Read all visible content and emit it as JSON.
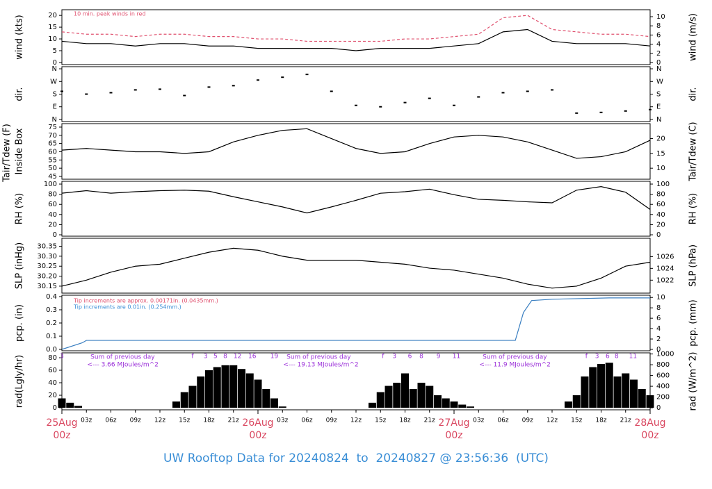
{
  "title": "UW Rooftop Data for 20240824  to  20240827 @ 23:56:36  (UTC)",
  "chart_data": [
    {
      "type": "line",
      "ylabel": "wind (kts)",
      "y2label": "wind (m/s)",
      "annotation": "10 min. peak winds in red",
      "ylim": [
        -0.9,
        22.4
      ],
      "yticks": [
        0,
        5,
        10,
        15,
        20
      ],
      "y2lim": [
        -0.46,
        11.52
      ],
      "y2ticks": [
        0,
        2,
        4,
        6,
        8,
        10
      ],
      "x": [
        0,
        3,
        6,
        9,
        12,
        15,
        18,
        21,
        24,
        27,
        30,
        33,
        36,
        39,
        42,
        45,
        48,
        51,
        54,
        57,
        60,
        63,
        66,
        69,
        72
      ],
      "series": [
        {
          "color": "#000000",
          "values": [
            9,
            8,
            8,
            7,
            8,
            8,
            7,
            7,
            6,
            6,
            6,
            6,
            5,
            6,
            6,
            6,
            7,
            8,
            13,
            14,
            9,
            8,
            8,
            8,
            7
          ]
        },
        {
          "color": "#e0506e",
          "style": "dash",
          "values": [
            13,
            12,
            12,
            11,
            12,
            12,
            11,
            11,
            10,
            10,
            9,
            9,
            9,
            9,
            10,
            10,
            11,
            12,
            19,
            20,
            14,
            13,
            12,
            12,
            11
          ]
        }
      ]
    },
    {
      "type": "scatter",
      "ylabel": "dir.",
      "y2label": "dir.",
      "ylim": [
        -15,
        375
      ],
      "yticks": [
        {
          "value": 0,
          "label": "N"
        },
        {
          "value": 90,
          "label": "E"
        },
        {
          "value": 180,
          "label": "S"
        },
        {
          "value": 270,
          "label": "W"
        },
        {
          "value": 360,
          "label": "N"
        }
      ],
      "y2lim": [
        -15,
        375
      ],
      "y2ticks": [
        {
          "value": 0,
          "label": "N"
        },
        {
          "value": 90,
          "label": "E"
        },
        {
          "value": 180,
          "label": "S"
        },
        {
          "value": 270,
          "label": "W"
        },
        {
          "value": 360,
          "label": "N"
        }
      ],
      "x": [
        0,
        3,
        6,
        9,
        12,
        15,
        18,
        21,
        24,
        27,
        30,
        33,
        36,
        39,
        42,
        45,
        48,
        51,
        54,
        57,
        60,
        63,
        66,
        69,
        72
      ],
      "series": [
        {
          "color": "#000000",
          "values": [
            200,
            180,
            190,
            210,
            215,
            170,
            230,
            240,
            280,
            300,
            320,
            200,
            100,
            90,
            120,
            150,
            100,
            160,
            190,
            200,
            210,
            45,
            50,
            60,
            70
          ]
        }
      ]
    },
    {
      "type": "line",
      "ylabel": "Tair/Tdew (F)",
      "ylabel2": "Inside Box",
      "y2label": "Tair/Tdew (C)",
      "ylim": [
        43.3,
        77.1
      ],
      "yticks": [
        45,
        50,
        55,
        60,
        65,
        70,
        75
      ],
      "y2lim": [
        6.28,
        25.06
      ],
      "y2ticks": [
        10,
        15,
        20
      ],
      "x": [
        0,
        3,
        6,
        9,
        12,
        15,
        18,
        21,
        24,
        27,
        30,
        33,
        36,
        39,
        42,
        45,
        48,
        51,
        54,
        57,
        60,
        63,
        66,
        69,
        72
      ],
      "series": [
        {
          "color": "#000000",
          "values": [
            61,
            62,
            61,
            60,
            60,
            59,
            60,
            66,
            70,
            73,
            74,
            68,
            62,
            59,
            60,
            65,
            69,
            70,
            69,
            66,
            61,
            56,
            57,
            60,
            67
          ]
        }
      ]
    },
    {
      "type": "line",
      "ylabel": "RH (%)",
      "y2label": "RH (%)",
      "ylim": [
        -2.7,
        105.5
      ],
      "yticks": [
        0,
        20,
        40,
        60,
        80,
        100
      ],
      "y2lim": [
        -2.7,
        105.5
      ],
      "y2ticks": [
        0,
        20,
        40,
        60,
        80,
        100
      ],
      "x": [
        0,
        3,
        6,
        9,
        12,
        15,
        18,
        21,
        24,
        27,
        30,
        33,
        36,
        39,
        42,
        45,
        48,
        51,
        54,
        57,
        60,
        63,
        66,
        69,
        72
      ],
      "series": [
        {
          "color": "#000000",
          "values": [
            82,
            87,
            82,
            85,
            87,
            88,
            86,
            75,
            65,
            55,
            43,
            55,
            68,
            82,
            85,
            90,
            79,
            70,
            68,
            65,
            63,
            88,
            95,
            84,
            50
          ]
        }
      ]
    },
    {
      "type": "line",
      "ylabel": "SLP (inHg)",
      "y2label": "SLP (hPa)",
      "ylim": [
        30.115,
        30.39
      ],
      "yticks": [
        30.15,
        {
          "value": 30.2,
          "label": "30.20"
        },
        30.25,
        {
          "value": 30.3,
          "label": "30.30"
        },
        30.35
      ],
      "y2lim": [
        1019.8,
        1029.1
      ],
      "y2ticks": [
        1022,
        1024,
        1026
      ],
      "x": [
        0,
        3,
        6,
        9,
        12,
        15,
        18,
        21,
        24,
        27,
        30,
        33,
        36,
        39,
        42,
        45,
        48,
        51,
        54,
        57,
        60,
        63,
        66,
        69,
        72
      ],
      "series": [
        {
          "color": "#000000",
          "values": [
            30.15,
            30.18,
            30.22,
            30.25,
            30.26,
            30.29,
            30.32,
            30.34,
            30.33,
            30.3,
            30.28,
            30.28,
            30.28,
            30.27,
            30.26,
            30.24,
            30.23,
            30.21,
            30.19,
            30.16,
            30.14,
            30.15,
            30.19,
            30.25,
            30.27
          ]
        }
      ]
    },
    {
      "type": "step",
      "ylabel": "pcp. (in)",
      "y2label": "pcp. (mm)",
      "annotations": [
        {
          "text": "Tip increments are approx. 0.00171in. (0.0435mm.)",
          "color": "#e0506e"
        },
        {
          "text": "Tip increments are 0.01in. (0.254mm.)",
          "color": "#3a8ed6"
        }
      ],
      "ylim": [
        -0.0105,
        0.4105
      ],
      "yticks": [
        {
          "value": 0,
          "label": "0.0"
        },
        0.1,
        0.2,
        0.3,
        0.4
      ],
      "y2lim": [
        -0.267,
        10.43
      ],
      "y2ticks": [
        0,
        2,
        4,
        6,
        8,
        10
      ],
      "x": [
        0,
        2.5,
        3,
        55.5,
        56.5,
        57.5,
        60,
        67,
        72
      ],
      "series": [
        {
          "color": "#3a7fc1",
          "values": [
            0,
            0.05,
            0.068,
            0.068,
            0.28,
            0.37,
            0.38,
            0.39,
            0.39
          ]
        }
      ]
    },
    {
      "type": "bar",
      "ylabel": "rad(Lgly/hr)",
      "y2label": "rad (W/m^2)",
      "ylim": [
        -3.3,
        87.8
      ],
      "yticks": [
        0,
        20,
        40,
        60,
        80
      ],
      "y2lim": [
        -38,
        1021
      ],
      "y2ticks": [
        0,
        200,
        400,
        600,
        800,
        1000
      ],
      "daily_sums": [
        [
          "Sum of previous day",
          "<--- 3.66 MJoules/m^2"
        ],
        [
          "Sum of previous day",
          "<--- 19.13 MJoules/m^2"
        ],
        [
          "Sum of previous day",
          "<--- 11.9 MJoules/m^2"
        ]
      ],
      "hour_marks": [
        {
          "value": 0,
          "label": "3"
        },
        {
          "value": 16,
          "label": "f"
        },
        {
          "value": 17.6,
          "label": "3"
        },
        {
          "value": 18.8,
          "label": "5"
        },
        {
          "value": 20,
          "label": "8"
        },
        {
          "value": 21.5,
          "label": "12"
        },
        {
          "value": 23.3,
          "label": "16"
        },
        {
          "value": 26,
          "label": "19"
        },
        {
          "value": 39.3,
          "label": "f"
        },
        {
          "value": 40.7,
          "label": "3"
        },
        {
          "value": 42.6,
          "label": "6"
        },
        {
          "value": 44,
          "label": "8"
        },
        {
          "value": 46.1,
          "label": "9"
        },
        {
          "value": 48.3,
          "label": "11"
        },
        {
          "value": 64.2,
          "label": "f"
        },
        {
          "value": 65.5,
          "label": "3"
        },
        {
          "value": 66.8,
          "label": "6"
        },
        {
          "value": 67.9,
          "label": "8"
        },
        {
          "value": 69.9,
          "label": "11"
        }
      ],
      "xlim": [
        0,
        72
      ],
      "xticks": [
        {
          "value": 3,
          "label": "03z"
        },
        {
          "value": 6,
          "label": "06z"
        },
        {
          "value": 9,
          "label": "09z"
        },
        {
          "value": 12,
          "label": "12z"
        },
        {
          "value": 15,
          "label": "15z"
        },
        {
          "value": 18,
          "label": "18z"
        },
        {
          "value": 21,
          "label": "21z"
        },
        {
          "value": 27,
          "label": "03z"
        },
        {
          "value": 30,
          "label": "06z"
        },
        {
          "value": 33,
          "label": "09z"
        },
        {
          "value": 36,
          "label": "12z"
        },
        {
          "value": 39,
          "label": "15z"
        },
        {
          "value": 42,
          "label": "18z"
        },
        {
          "value": 45,
          "label": "21z"
        },
        {
          "value": 51,
          "label": "03z"
        },
        {
          "value": 54,
          "label": "06z"
        },
        {
          "value": 57,
          "label": "09z"
        },
        {
          "value": 60,
          "label": "12z"
        },
        {
          "value": 63,
          "label": "15z"
        },
        {
          "value": 66,
          "label": "18z"
        },
        {
          "value": 69,
          "label": "21z"
        }
      ],
      "day_ticks": [
        {
          "value": 0,
          "label": "25Aug",
          "sub": "00z"
        },
        {
          "value": 24,
          "label": "26Aug",
          "sub": "00z"
        },
        {
          "value": 48,
          "label": "27Aug",
          "sub": "00z"
        },
        {
          "value": 72,
          "label": "28Aug",
          "sub": "00z"
        }
      ],
      "x": [
        0,
        1,
        2,
        3,
        4,
        5,
        6,
        7,
        8,
        9,
        10,
        11,
        12,
        13,
        14,
        15,
        16,
        17,
        18,
        19,
        20,
        21,
        22,
        23,
        24,
        25,
        26,
        27,
        28,
        29,
        30,
        31,
        32,
        33,
        34,
        35,
        36,
        37,
        38,
        39,
        40,
        41,
        42,
        43,
        44,
        45,
        46,
        47,
        48,
        49,
        50,
        51,
        52,
        53,
        54,
        55,
        56,
        57,
        58,
        59,
        60,
        61,
        62,
        63,
        64,
        65,
        66,
        67,
        68,
        69,
        70,
        71,
        72
      ],
      "series": [
        {
          "color": "#000000",
          "values": [
            15,
            8,
            3,
            0,
            0,
            0,
            0,
            0,
            0,
            0,
            0,
            0,
            0,
            0,
            10,
            25,
            35,
            50,
            60,
            65,
            68,
            68,
            62,
            55,
            45,
            30,
            15,
            2,
            0,
            0,
            0,
            0,
            0,
            0,
            0,
            0,
            0,
            0,
            8,
            25,
            35,
            40,
            55,
            30,
            40,
            35,
            20,
            15,
            10,
            5,
            2,
            0,
            0,
            0,
            0,
            0,
            0,
            0,
            0,
            0,
            0,
            0,
            10,
            20,
            50,
            65,
            70,
            72,
            50,
            55,
            45,
            30,
            20
          ]
        }
      ]
    }
  ]
}
